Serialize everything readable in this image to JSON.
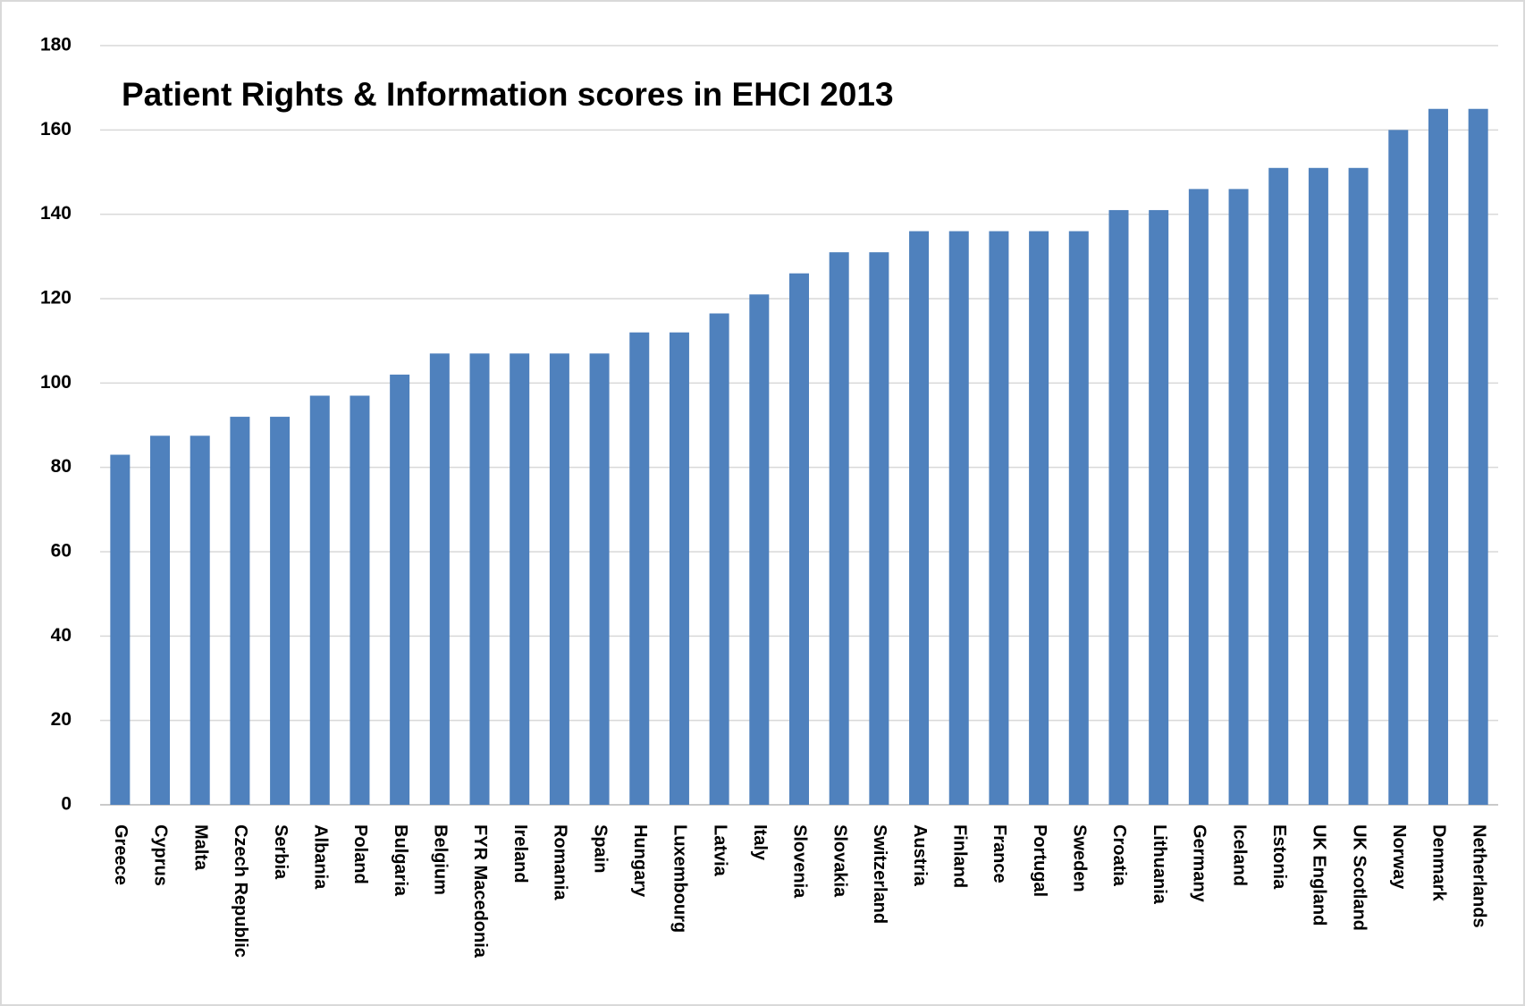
{
  "chart_data": {
    "type": "bar",
    "title": "Patient Rights & Information scores in EHCI 2013",
    "categories": [
      "Greece",
      "Cyprus",
      "Malta",
      "Czech Republic",
      "Serbia",
      "Albania",
      "Poland",
      "Bulgaria",
      "Belgium",
      "FYR Macedonia",
      "Ireland",
      "Romania",
      "Spain",
      "Hungary",
      "Luxembourg",
      "Latvia",
      "Italy",
      "Slovenia",
      "Slovakia",
      "Switzerland",
      "Austria",
      "Finland",
      "France",
      "Portugal",
      "Sweden",
      "Croatia",
      "Lithuania",
      "Germany",
      "Iceland",
      "Estonia",
      "UK England",
      "UK Scotland",
      "Norway",
      "Denmark",
      "Netherlands"
    ],
    "values": [
      83,
      87.5,
      87.5,
      92,
      92,
      97,
      97,
      102,
      107,
      107,
      107,
      107,
      107,
      112,
      112,
      116.5,
      121,
      126,
      131,
      131,
      136,
      136,
      136,
      136,
      136,
      141,
      141,
      146,
      146,
      151,
      151,
      151,
      160,
      165,
      165
    ],
    "color": "#4f81bd",
    "ylim": [
      0,
      180
    ],
    "yticks": [
      0,
      20,
      40,
      60,
      80,
      100,
      120,
      140,
      160,
      180
    ],
    "grid": true
  }
}
